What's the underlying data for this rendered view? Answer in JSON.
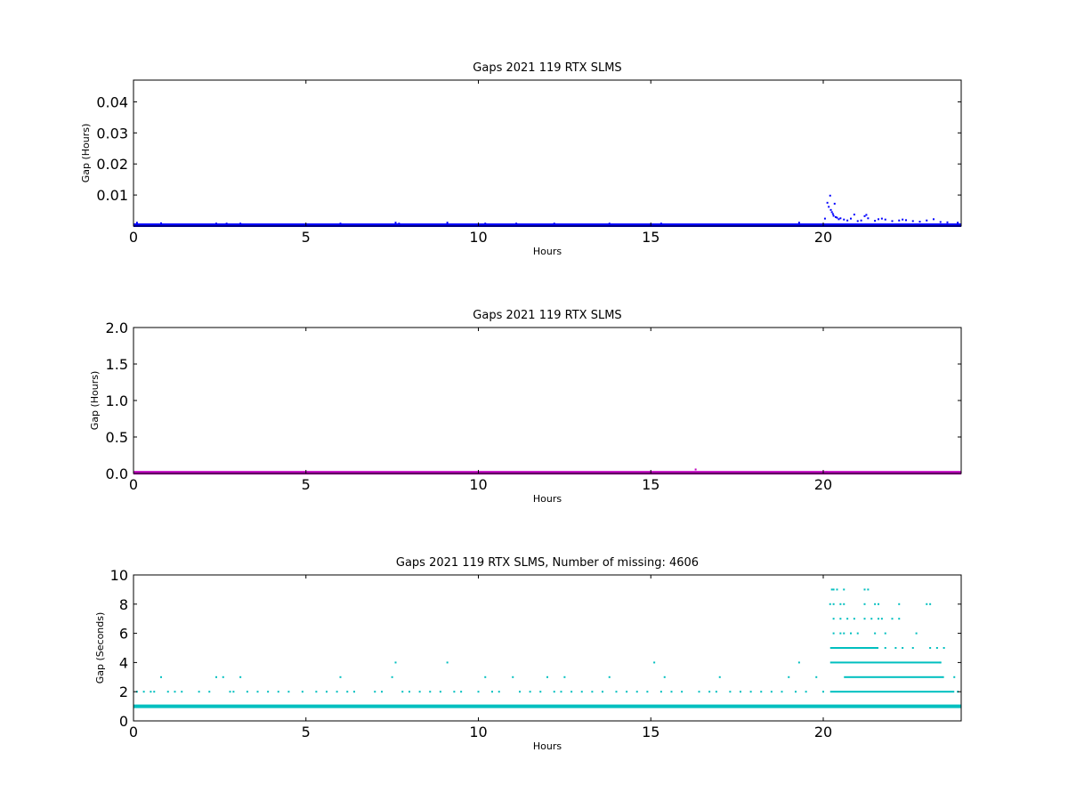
{
  "chart_data": [
    {
      "type": "scatter",
      "title": "Gaps 2021 119 RTX  SLMS",
      "xlabel": "Hours",
      "ylabel": "Gap (Hours)",
      "xlim": [
        0,
        24
      ],
      "ylim": [
        0,
        0.047
      ],
      "xticks": [
        "0",
        "5",
        "10",
        "15",
        "20"
      ],
      "xtick_values": [
        0,
        5,
        10,
        15,
        20
      ],
      "yticks": [
        "0.01",
        "0.02",
        "0.03",
        "0.04"
      ],
      "ytick_values": [
        0.01,
        0.02,
        0.03,
        0.04
      ],
      "grid": false,
      "color": "#0000ff",
      "series": [
        {
          "baseline_value": 0.00028,
          "baseline_x_range": [
            0,
            24
          ],
          "points": [
            [
              0.1,
              0.0011
            ],
            [
              0.8,
              0.0009
            ],
            [
              2.4,
              0.0008
            ],
            [
              2.7,
              0.0008
            ],
            [
              3.1,
              0.0008
            ],
            [
              6.0,
              0.0008
            ],
            [
              7.6,
              0.0011
            ],
            [
              7.7,
              0.0008
            ],
            [
              9.1,
              0.0011
            ],
            [
              10.2,
              0.0008
            ],
            [
              11.1,
              0.0008
            ],
            [
              12.2,
              0.0008
            ],
            [
              13.8,
              0.0008
            ],
            [
              15.3,
              0.0008
            ],
            [
              19.3,
              0.0011
            ],
            [
              20.05,
              0.0024
            ],
            [
              20.12,
              0.0075
            ],
            [
              20.16,
              0.0062
            ],
            [
              20.2,
              0.0098
            ],
            [
              20.22,
              0.0052
            ],
            [
              20.25,
              0.0045
            ],
            [
              20.28,
              0.0039
            ],
            [
              20.3,
              0.0033
            ],
            [
              20.33,
              0.0072
            ],
            [
              20.36,
              0.0029
            ],
            [
              20.4,
              0.0027
            ],
            [
              20.45,
              0.0022
            ],
            [
              20.5,
              0.0025
            ],
            [
              20.6,
              0.0021
            ],
            [
              20.7,
              0.0018
            ],
            [
              20.8,
              0.0024
            ],
            [
              20.9,
              0.0037
            ],
            [
              21.0,
              0.0016
            ],
            [
              21.1,
              0.0018
            ],
            [
              21.2,
              0.0032
            ],
            [
              21.25,
              0.0036
            ],
            [
              21.3,
              0.0025
            ],
            [
              21.5,
              0.0017
            ],
            [
              21.6,
              0.0022
            ],
            [
              21.7,
              0.0024
            ],
            [
              21.8,
              0.0021
            ],
            [
              22.0,
              0.0016
            ],
            [
              22.2,
              0.0018
            ],
            [
              22.3,
              0.0021
            ],
            [
              22.4,
              0.0019
            ],
            [
              22.6,
              0.0016
            ],
            [
              22.8,
              0.0014
            ],
            [
              23.0,
              0.0018
            ],
            [
              23.2,
              0.0022
            ],
            [
              23.4,
              0.0013
            ],
            [
              23.6,
              0.0012
            ],
            [
              23.9,
              0.0011
            ]
          ]
        }
      ]
    },
    {
      "type": "scatter",
      "title": "Gaps 2021 119 RTX  SLMS",
      "xlabel": "Hours",
      "ylabel": "Gap (Hours)",
      "xlim": [
        0,
        24
      ],
      "ylim": [
        0,
        2.0
      ],
      "xticks": [
        "0",
        "5",
        "10",
        "15",
        "20"
      ],
      "xtick_values": [
        0,
        5,
        10,
        15,
        20
      ],
      "yticks": [
        "0.0",
        "0.5",
        "1.0",
        "1.5",
        "2.0"
      ],
      "ytick_values": [
        0,
        0.5,
        1.0,
        1.5,
        2.0
      ],
      "grid": false,
      "color": "#bf00bf",
      "series": [
        {
          "baseline_value": 0.01,
          "baseline_x_range": [
            0,
            24
          ],
          "points": [
            [
              16.3,
              0.055
            ],
            [
              20.1,
              0.02
            ],
            [
              20.3,
              0.012
            ]
          ]
        }
      ]
    },
    {
      "type": "scatter",
      "title": "Gaps 2021 119 RTX  SLMS, Number of missing: 4606",
      "xlabel": "Hours",
      "ylabel": "Gap (Seconds)",
      "xlim": [
        0,
        24
      ],
      "ylim": [
        0,
        10
      ],
      "xticks": [
        "0",
        "5",
        "10",
        "15",
        "20"
      ],
      "xtick_values": [
        0,
        5,
        10,
        15,
        20
      ],
      "yticks": [
        "0",
        "2",
        "4",
        "6",
        "8",
        "10"
      ],
      "ytick_values": [
        0,
        2,
        4,
        6,
        8,
        10
      ],
      "grid": false,
      "color": "#00bfbf",
      "series": [
        {
          "baseline_value": 1,
          "baseline_x_range": [
            0,
            24
          ],
          "dense_levels": [
            {
              "value": 2,
              "x_range": [
                20.2,
                23.8
              ]
            },
            {
              "value": 3,
              "x_range": [
                20.6,
                23.5
              ]
            },
            {
              "value": 4,
              "x_range": [
                20.2,
                23.4
              ]
            },
            {
              "value": 5,
              "x_range": [
                20.2,
                21.6
              ]
            }
          ],
          "points": [
            [
              0.1,
              2
            ],
            [
              0.3,
              2
            ],
            [
              0.5,
              2
            ],
            [
              0.6,
              2
            ],
            [
              0.8,
              3
            ],
            [
              1.0,
              2
            ],
            [
              1.2,
              2
            ],
            [
              1.4,
              2
            ],
            [
              1.9,
              2
            ],
            [
              2.2,
              2
            ],
            [
              2.4,
              3
            ],
            [
              2.6,
              3
            ],
            [
              2.8,
              2
            ],
            [
              2.9,
              2
            ],
            [
              3.1,
              3
            ],
            [
              3.3,
              2
            ],
            [
              3.6,
              2
            ],
            [
              3.9,
              2
            ],
            [
              4.2,
              2
            ],
            [
              4.5,
              2
            ],
            [
              4.9,
              2
            ],
            [
              5.3,
              2
            ],
            [
              5.6,
              2
            ],
            [
              5.9,
              2
            ],
            [
              6.0,
              3
            ],
            [
              6.2,
              2
            ],
            [
              6.4,
              2
            ],
            [
              7.0,
              2
            ],
            [
              7.2,
              2
            ],
            [
              7.5,
              3
            ],
            [
              7.6,
              4
            ],
            [
              7.8,
              2
            ],
            [
              8.0,
              2
            ],
            [
              8.3,
              2
            ],
            [
              8.6,
              2
            ],
            [
              8.9,
              2
            ],
            [
              9.1,
              4
            ],
            [
              9.3,
              2
            ],
            [
              9.5,
              2
            ],
            [
              10.0,
              2
            ],
            [
              10.2,
              3
            ],
            [
              10.4,
              2
            ],
            [
              10.6,
              2
            ],
            [
              11.0,
              3
            ],
            [
              11.2,
              2
            ],
            [
              11.5,
              2
            ],
            [
              11.8,
              2
            ],
            [
              12.0,
              3
            ],
            [
              12.2,
              2
            ],
            [
              12.4,
              2
            ],
            [
              12.5,
              3
            ],
            [
              12.7,
              2
            ],
            [
              13.0,
              2
            ],
            [
              13.3,
              2
            ],
            [
              13.6,
              2
            ],
            [
              13.8,
              3
            ],
            [
              14.0,
              2
            ],
            [
              14.3,
              2
            ],
            [
              14.6,
              2
            ],
            [
              14.9,
              2
            ],
            [
              15.1,
              4
            ],
            [
              15.3,
              2
            ],
            [
              15.4,
              3
            ],
            [
              15.6,
              2
            ],
            [
              15.9,
              2
            ],
            [
              16.4,
              2
            ],
            [
              16.7,
              2
            ],
            [
              16.9,
              2
            ],
            [
              17.0,
              3
            ],
            [
              17.3,
              2
            ],
            [
              17.6,
              2
            ],
            [
              17.9,
              2
            ],
            [
              18.2,
              2
            ],
            [
              18.5,
              2
            ],
            [
              18.8,
              2
            ],
            [
              19.0,
              3
            ],
            [
              19.2,
              2
            ],
            [
              19.3,
              4
            ],
            [
              19.5,
              2
            ],
            [
              19.8,
              3
            ],
            [
              20.0,
              2
            ],
            [
              20.25,
              9
            ],
            [
              20.3,
              9
            ],
            [
              20.4,
              9
            ],
            [
              20.6,
              9
            ],
            [
              21.2,
              9
            ],
            [
              21.3,
              9
            ],
            [
              20.2,
              8
            ],
            [
              20.3,
              8
            ],
            [
              20.5,
              8
            ],
            [
              20.6,
              8
            ],
            [
              21.2,
              8
            ],
            [
              21.5,
              8
            ],
            [
              21.6,
              8
            ],
            [
              22.2,
              8
            ],
            [
              23.0,
              8
            ],
            [
              23.1,
              8
            ],
            [
              20.3,
              7
            ],
            [
              20.5,
              7
            ],
            [
              20.7,
              7
            ],
            [
              20.9,
              7
            ],
            [
              21.2,
              7
            ],
            [
              21.4,
              7
            ],
            [
              21.6,
              7
            ],
            [
              21.7,
              7
            ],
            [
              22.0,
              7
            ],
            [
              22.2,
              7
            ],
            [
              20.3,
              6
            ],
            [
              20.5,
              6
            ],
            [
              20.6,
              6
            ],
            [
              20.8,
              6
            ],
            [
              21.0,
              6
            ],
            [
              21.5,
              6
            ],
            [
              21.8,
              6
            ],
            [
              22.7,
              6
            ],
            [
              21.8,
              5
            ],
            [
              22.1,
              5
            ],
            [
              22.3,
              5
            ],
            [
              22.6,
              5
            ],
            [
              23.1,
              5
            ],
            [
              23.3,
              5
            ],
            [
              23.5,
              5
            ],
            [
              23.8,
              3
            ],
            [
              23.9,
              2
            ],
            [
              23.4,
              4
            ]
          ]
        }
      ]
    }
  ]
}
